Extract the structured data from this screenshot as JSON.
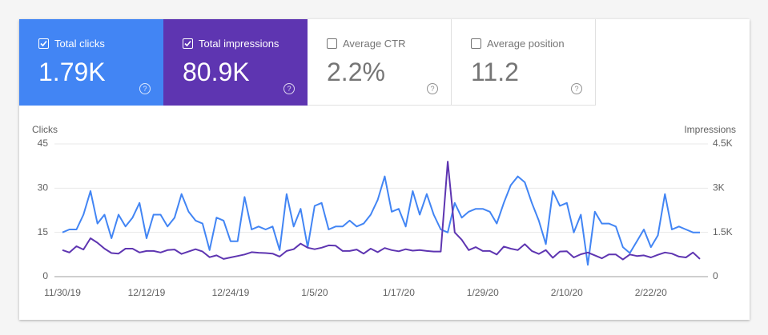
{
  "cards": [
    {
      "label": "Total clicks",
      "value": "1.79K",
      "selected": true
    },
    {
      "label": "Total impressions",
      "value": "80.9K",
      "selected": true
    },
    {
      "label": "Average CTR",
      "value": "2.2%",
      "selected": false
    },
    {
      "label": "Average position",
      "value": "11.2",
      "selected": false
    }
  ],
  "chart_data": {
    "type": "line",
    "ylabel": "Clicks",
    "y2label": "Impressions",
    "categories": [
      "11/30/19",
      null,
      null,
      null,
      null,
      null,
      null,
      null,
      null,
      null,
      null,
      null,
      "12/12/19",
      null,
      null,
      null,
      null,
      null,
      null,
      null,
      null,
      null,
      null,
      null,
      "12/24/19",
      null,
      null,
      null,
      null,
      null,
      null,
      null,
      null,
      null,
      null,
      null,
      "1/5/20",
      null,
      null,
      null,
      null,
      null,
      null,
      null,
      null,
      null,
      null,
      null,
      "1/17/20",
      null,
      null,
      null,
      null,
      null,
      null,
      null,
      null,
      null,
      null,
      null,
      "1/29/20",
      null,
      null,
      null,
      null,
      null,
      null,
      null,
      null,
      null,
      null,
      null,
      "2/10/20",
      null,
      null,
      null,
      null,
      null,
      null,
      null,
      null,
      null,
      null,
      null,
      "2/22/20",
      null,
      null,
      null,
      null,
      null,
      null,
      null
    ],
    "series": [
      {
        "name": "Clicks",
        "color": "#4285f4",
        "values": [
          15,
          16,
          16,
          21,
          29,
          18,
          21,
          13,
          21,
          17,
          20,
          25,
          13,
          21,
          21,
          17,
          20,
          28,
          22,
          19,
          18,
          9,
          20,
          19,
          12,
          12,
          27,
          16,
          17,
          16,
          17,
          9,
          28,
          17,
          23,
          10,
          24,
          25,
          16,
          17,
          17,
          19,
          17,
          18,
          21,
          26,
          34,
          22,
          23,
          17,
          29,
          21,
          28,
          21,
          16,
          15,
          25,
          20,
          22,
          23,
          23,
          22,
          18,
          25,
          31,
          34,
          32,
          25,
          19,
          11,
          29,
          24,
          25,
          15,
          21,
          4,
          22,
          18,
          18,
          17,
          10,
          8,
          12,
          16,
          10,
          14,
          28,
          16,
          17,
          16,
          15,
          15
        ]
      },
      {
        "name": "Impressions",
        "color": "#5e35b1",
        "axis": "y2",
        "values": [
          900,
          820,
          1030,
          920,
          1300,
          1150,
          950,
          800,
          780,
          950,
          950,
          820,
          870,
          870,
          820,
          900,
          920,
          770,
          850,
          930,
          850,
          660,
          720,
          600,
          650,
          700,
          750,
          830,
          810,
          800,
          780,
          680,
          870,
          930,
          1120,
          980,
          930,
          980,
          1060,
          1050,
          870,
          870,
          920,
          780,
          950,
          830,
          970,
          900,
          860,
          930,
          880,
          900,
          870,
          850,
          850,
          3900,
          1500,
          1250,
          900,
          1000,
          870,
          870,
          750,
          1020,
          950,
          900,
          1100,
          870,
          770,
          900,
          640,
          850,
          860,
          650,
          760,
          820,
          720,
          620,
          750,
          750,
          580,
          750,
          700,
          720,
          650,
          740,
          820,
          780,
          680,
          650,
          820,
          600
        ]
      }
    ],
    "ylim": [
      0,
      45
    ],
    "yticks": [
      0,
      15,
      30,
      45
    ],
    "y2lim": [
      0,
      4500
    ],
    "y2ticks": [
      0,
      {
        "value": 1500,
        "label": "1.5K"
      },
      {
        "value": 3000,
        "label": "3K"
      },
      {
        "value": 4500,
        "label": "4.5K"
      }
    ],
    "grid": true
  }
}
